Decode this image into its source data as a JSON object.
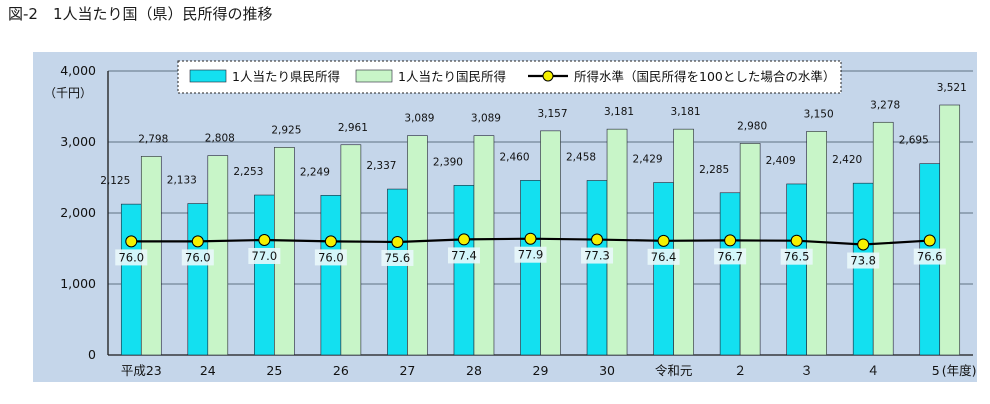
{
  "figure_title": "図-2　1人当たり国（県）民所得の推移",
  "chart_data": {
    "type": "bar",
    "categories": [
      "平成23",
      "24",
      "25",
      "26",
      "27",
      "28",
      "29",
      "30",
      "令和元",
      "２",
      "３",
      "４",
      "5"
    ],
    "x_unit_label": "(年度)",
    "y_unit_label": "（千円）",
    "ylim": [
      0,
      4000
    ],
    "y_ticks": [
      "0",
      "1,000",
      "2,000",
      "3,000",
      "4,000"
    ],
    "grid": true,
    "legend_position": "top",
    "series": [
      {
        "name": "1人当たり県民所得",
        "type": "bar",
        "color": "#13e0f0",
        "values": [
          2125,
          2133,
          2253,
          2249,
          2337,
          2390,
          2460,
          2458,
          2429,
          2285,
          2409,
          2420,
          2695
        ],
        "labels": [
          "2,125",
          "2,133",
          "2,253",
          "2,249",
          "2,337",
          "2,390",
          "2,460",
          "2,458",
          "2,429",
          "2,285",
          "2,409",
          "2,420",
          "2,695"
        ]
      },
      {
        "name": "1人当たり国民所得",
        "type": "bar",
        "color": "#c8f5c8",
        "values": [
          2798,
          2808,
          2925,
          2961,
          3089,
          3089,
          3157,
          3181,
          3181,
          2980,
          3150,
          3278,
          3521
        ],
        "labels": [
          "2,798",
          "2,808",
          "2,925",
          "2,961",
          "3,089",
          "3,089",
          "3,157",
          "3,181",
          "3,181",
          "2,980",
          "3,150",
          "3,278",
          "3,521"
        ]
      },
      {
        "name": "所得水準（国民所得を100とした場合の水準）",
        "type": "line",
        "color": "#000000",
        "marker_color": "#f5f000",
        "values": [
          76.0,
          76.0,
          77.0,
          76.0,
          75.6,
          77.4,
          77.9,
          77.3,
          76.4,
          76.7,
          76.5,
          73.8,
          76.6
        ],
        "labels": [
          "76.0",
          "76.0",
          "77.0",
          "76.0",
          "75.6",
          "77.4",
          "77.9",
          "77.3",
          "76.4",
          "76.7",
          "76.5",
          "73.8",
          "76.6"
        ]
      }
    ]
  },
  "colors": {
    "plot_background": "#c5d6ea",
    "legend_background": "#ffffff"
  }
}
